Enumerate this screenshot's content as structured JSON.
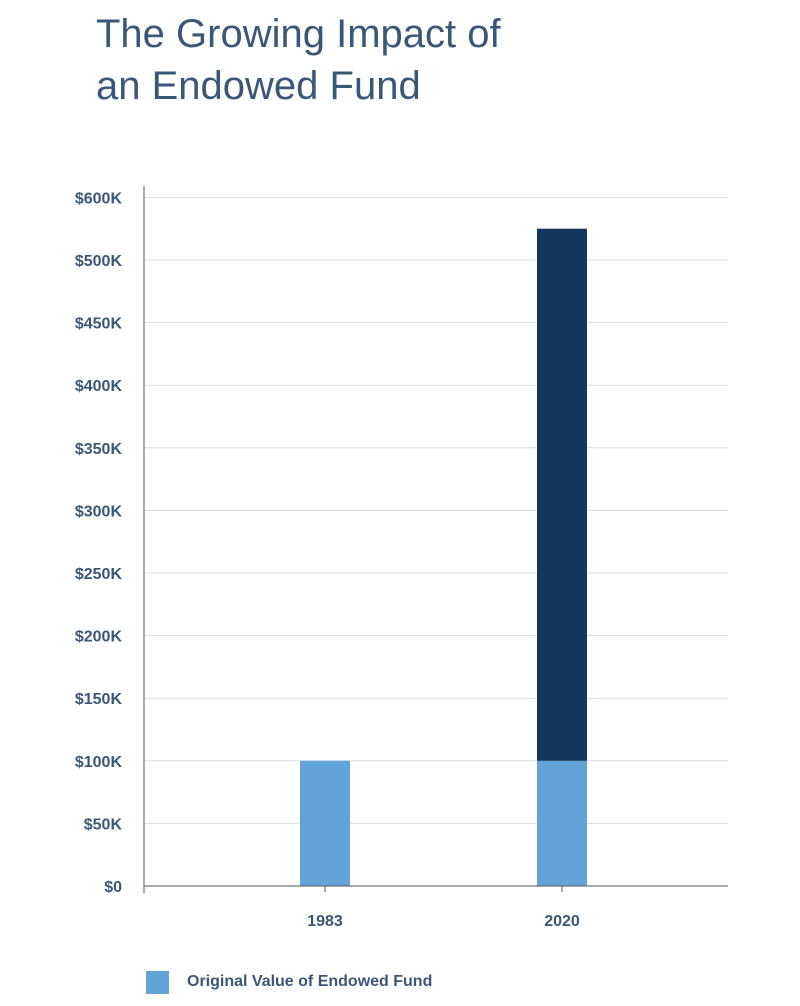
{
  "title": {
    "line1": "The Growing Impact of",
    "line2": "an Endowed Fund"
  },
  "colors": {
    "text": "#3a5777",
    "original": "#62a3da",
    "growth": "#12385f",
    "grid": "#d9dde2",
    "axis": "#555555"
  },
  "chart_data": {
    "type": "bar",
    "stacked": true,
    "categories": [
      "1983",
      "2020"
    ],
    "series": [
      {
        "name": "Original Value of Endowed Fund",
        "values": [
          100000,
          100000
        ],
        "color": "#62a3da"
      },
      {
        "values": [
          0,
          425000
        ],
        "color": "#12385f"
      }
    ],
    "y_ticks": [
      0,
      50000,
      100000,
      150000,
      200000,
      250000,
      300000,
      350000,
      400000,
      450000,
      500000,
      600000
    ],
    "y_tick_labels": [
      "$0",
      "$50K",
      "$100K",
      "$150K",
      "$200K",
      "$250K",
      "$300K",
      "$350K",
      "$400K",
      "$450K",
      "$500K",
      "$600K"
    ],
    "ylim": [
      0,
      550000
    ],
    "grid": true,
    "legend_position": "bottom-left",
    "xlabel": "",
    "ylabel": ""
  },
  "legend": {
    "items": [
      {
        "label": "Original Value of Endowed Fund",
        "color": "#62a3da"
      }
    ]
  }
}
